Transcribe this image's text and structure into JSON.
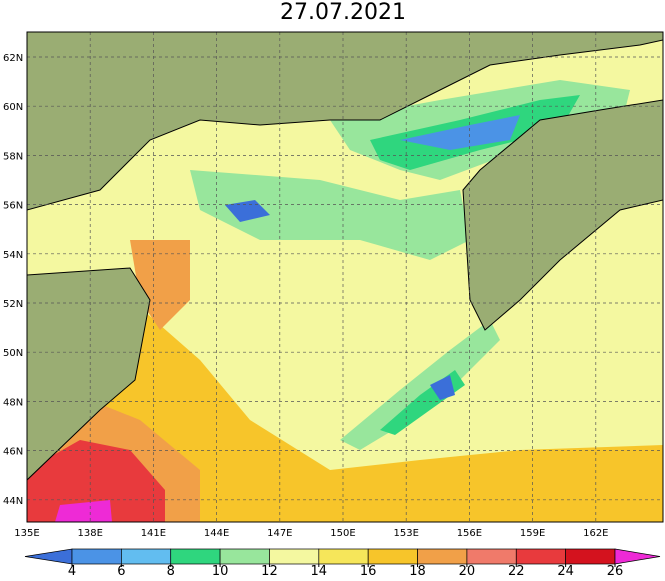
{
  "title": "27.07.2021",
  "lon_labels": [
    "135E",
    "138E",
    "141E",
    "144E",
    "147E",
    "150E",
    "153E",
    "156E",
    "159E",
    "162E"
  ],
  "lat_labels": [
    "62N",
    "60N",
    "58N",
    "56N",
    "54N",
    "52N",
    "50N",
    "48N",
    "46N",
    "44N"
  ],
  "colorbar": {
    "ticks": [
      4,
      6,
      8,
      10,
      12,
      14,
      16,
      18,
      20,
      22,
      24,
      26
    ],
    "colors": [
      "#3b6fd9",
      "#4b93e6",
      "#62bdf0",
      "#2fd67e",
      "#98e69c",
      "#f4f8a0",
      "#f6e65a",
      "#f7c52a",
      "#f1a048",
      "#f07a6a",
      "#e83a3d",
      "#d4121e",
      "#ee2ad6"
    ]
  }
}
